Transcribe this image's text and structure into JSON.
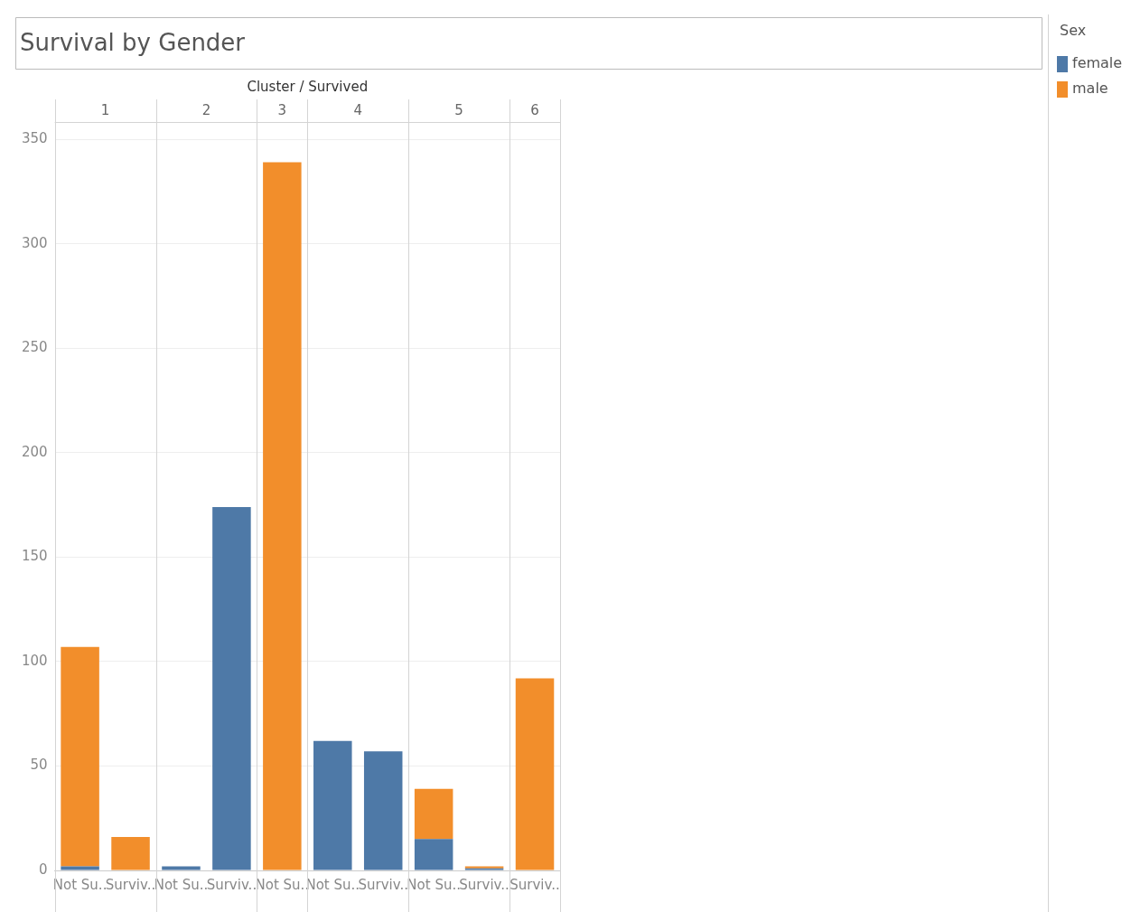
{
  "chart_data": {
    "type": "bar",
    "title": "Survival by Gender",
    "xlabel": "Cluster / Survived",
    "legend_title": "Sex",
    "categories": [
      "Not Su..",
      "Surviv..",
      "Not Su..",
      "Surviv..",
      "Not Su..",
      "Not Su..",
      "Surviv..",
      "Not Su..",
      "Surviv..",
      "Surviv.."
    ],
    "series": [
      {
        "name": "female",
        "color": "#4e79a7",
        "values": [
          2,
          0,
          2,
          174,
          0,
          62,
          57,
          15,
          1,
          0
        ]
      },
      {
        "name": "male",
        "color": "#f28e2b",
        "values": [
          105,
          16,
          0,
          0,
          339,
          0,
          0,
          24,
          1,
          92
        ]
      }
    ],
    "annotations": [
      "1",
      "2",
      "3",
      "4",
      "5",
      "6"
    ],
    "stacked": true,
    "ylim": [
      0,
      357
    ],
    "yticks": [
      0,
      50,
      100,
      150,
      200,
      250,
      300,
      350
    ],
    "grid": "y",
    "legend": "top right"
  }
}
